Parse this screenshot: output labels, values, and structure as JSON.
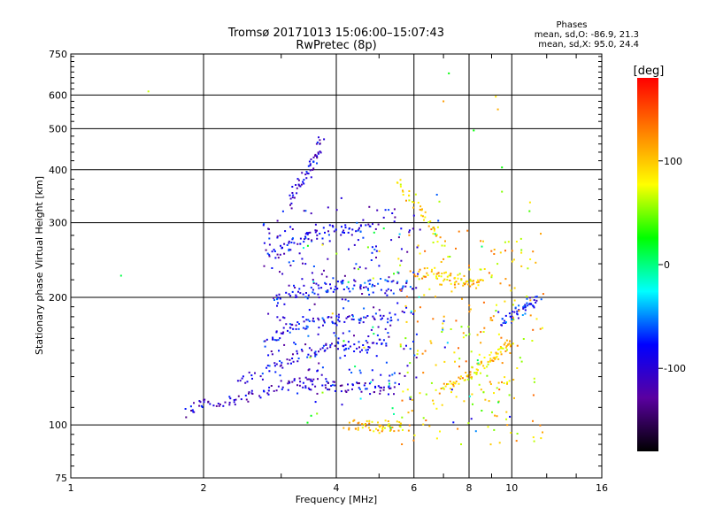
{
  "chart_data": {
    "type": "scatter",
    "title": "Tromsø 20171013 15:06:00–15:07:43",
    "subtitle": "RwPretec (8p)",
    "xlabel": "Frequency [MHz]",
    "ylabel": "Stationary phase Virtual Height [km]",
    "x_scale": "log",
    "y_scale": "log",
    "xlim": [
      1,
      16
    ],
    "ylim": [
      75,
      750
    ],
    "x_ticks": [
      1,
      2,
      4,
      6,
      8,
      10,
      16
    ],
    "y_ticks": [
      75,
      100,
      200,
      300,
      400,
      500,
      600,
      750
    ],
    "grid": true,
    "legend": {
      "title": "Phases",
      "o_stats": "mean, sd,O: -86.9, 21.3",
      "x_stats": "mean, sd,X:  95.0, 24.4"
    },
    "colorbar": {
      "label": "[deg]",
      "range": [
        -180,
        180
      ],
      "ticks": [
        100,
        0,
        -100
      ],
      "colors": [
        "#000000",
        "#5a00a0",
        "#0000ff",
        "#00ffff",
        "#00ff00",
        "#ffff00",
        "#ff8000",
        "#ff0000"
      ]
    },
    "series": [
      {
        "type": "trace",
        "points": [
          [
            1.85,
            107
          ],
          [
            2.0,
            113
          ],
          [
            2.3,
            114
          ],
          [
            2.6,
            117
          ],
          [
            3.0,
            124
          ],
          [
            3.3,
            126
          ],
          [
            3.7,
            125
          ],
          [
            4.2,
            123
          ],
          [
            4.8,
            122
          ],
          [
            5.5,
            121
          ]
        ],
        "phase": -105
      },
      {
        "type": "trace",
        "points": [
          [
            2.4,
            126
          ],
          [
            2.8,
            134
          ],
          [
            3.2,
            144
          ],
          [
            3.6,
            150
          ],
          [
            4.0,
            153
          ],
          [
            4.5,
            154
          ],
          [
            5.2,
            155
          ]
        ],
        "phase": -95
      },
      {
        "type": "trace",
        "points": [
          [
            2.8,
            158
          ],
          [
            3.1,
            168
          ],
          [
            3.4,
            173
          ],
          [
            3.8,
            176
          ],
          [
            4.2,
            178
          ],
          [
            4.8,
            180
          ],
          [
            5.5,
            180
          ]
        ],
        "phase": -85
      },
      {
        "type": "trace",
        "points": [
          [
            2.9,
            195
          ],
          [
            3.3,
            203
          ],
          [
            3.7,
            210
          ],
          [
            4.1,
            213
          ],
          [
            4.7,
            214
          ],
          [
            5.5,
            213
          ],
          [
            6.0,
            212
          ]
        ],
        "phase": -80
      },
      {
        "type": "trace",
        "points": [
          [
            2.8,
            250
          ],
          [
            3.1,
            262
          ],
          [
            3.4,
            275
          ],
          [
            3.8,
            285
          ],
          [
            4.3,
            292
          ],
          [
            5.0,
            296
          ]
        ],
        "phase": -90
      },
      {
        "type": "trace",
        "points": [
          [
            3.1,
            340
          ],
          [
            3.3,
            372
          ],
          [
            3.5,
            395
          ],
          [
            3.6,
            430
          ],
          [
            3.7,
            470
          ]
        ],
        "phase": -100
      },
      {
        "type": "trace",
        "points": [
          [
            6.0,
            225
          ],
          [
            6.5,
            230
          ],
          [
            7.0,
            225
          ],
          [
            7.5,
            220
          ],
          [
            8.0,
            218
          ],
          [
            8.5,
            215
          ]
        ],
        "phase": 100
      },
      {
        "type": "trace",
        "points": [
          [
            7.0,
            120
          ],
          [
            7.5,
            125
          ],
          [
            8.0,
            130
          ],
          [
            8.5,
            138
          ],
          [
            9.0,
            145
          ],
          [
            9.5,
            150
          ],
          [
            10.0,
            160
          ]
        ],
        "phase": 95
      },
      {
        "type": "trace",
        "points": [
          [
            9.5,
            175
          ],
          [
            10.0,
            180
          ],
          [
            10.5,
            188
          ],
          [
            11.0,
            194
          ],
          [
            11.5,
            196
          ]
        ],
        "phase": -80
      },
      {
        "type": "trace",
        "points": [
          [
            4.2,
            100
          ],
          [
            4.6,
            100
          ],
          [
            5.0,
            99
          ],
          [
            5.3,
            100
          ],
          [
            5.8,
            98
          ]
        ],
        "phase": 100
      },
      {
        "type": "trace",
        "points": [
          [
            5.5,
            370
          ],
          [
            6.0,
            340
          ],
          [
            6.5,
            300
          ],
          [
            7.0,
            265
          ]
        ],
        "phase": 90
      }
    ],
    "outliers": [
      [
        1.5,
        612
      ],
      [
        1.3,
        225
      ],
      [
        7.2,
        675
      ],
      [
        7.0,
        580
      ],
      [
        8.2,
        495
      ],
      [
        9.2,
        595
      ],
      [
        9.3,
        555
      ],
      [
        9.5,
        405
      ],
      [
        9.5,
        355
      ],
      [
        11.0,
        335
      ]
    ]
  }
}
